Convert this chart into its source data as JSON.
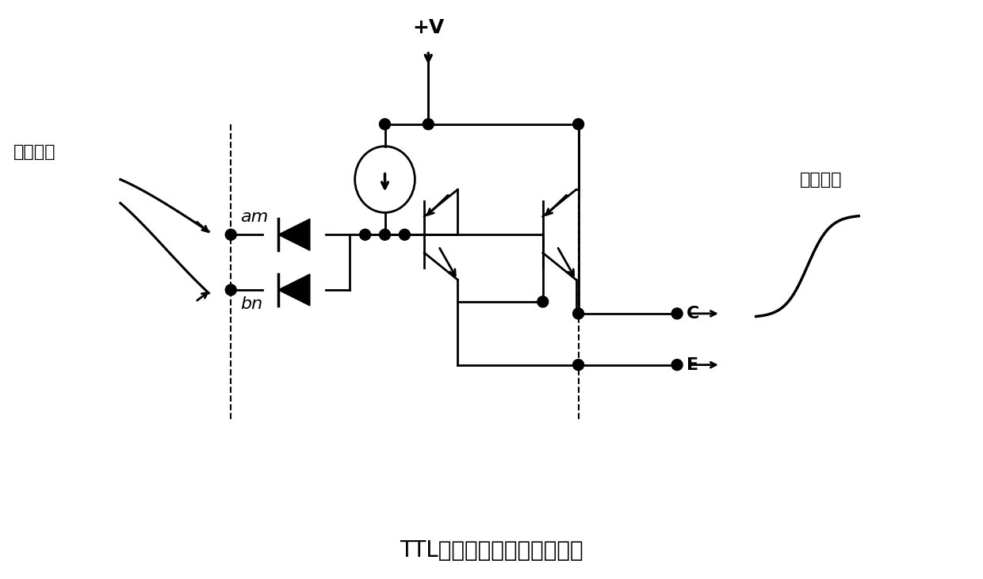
{
  "title": "TTL有源位权型量化逻辑电路",
  "label_weight_input": "权值输入",
  "label_fractal_output": "分形输出",
  "label_am": "am",
  "label_bn": "bn",
  "label_C": "C",
  "label_E": "E",
  "label_V": "+V",
  "bg_color": "#ffffff",
  "line_color": "#000000",
  "title_fontsize": 20,
  "label_fontsize": 16,
  "small_label_fontsize": 14
}
